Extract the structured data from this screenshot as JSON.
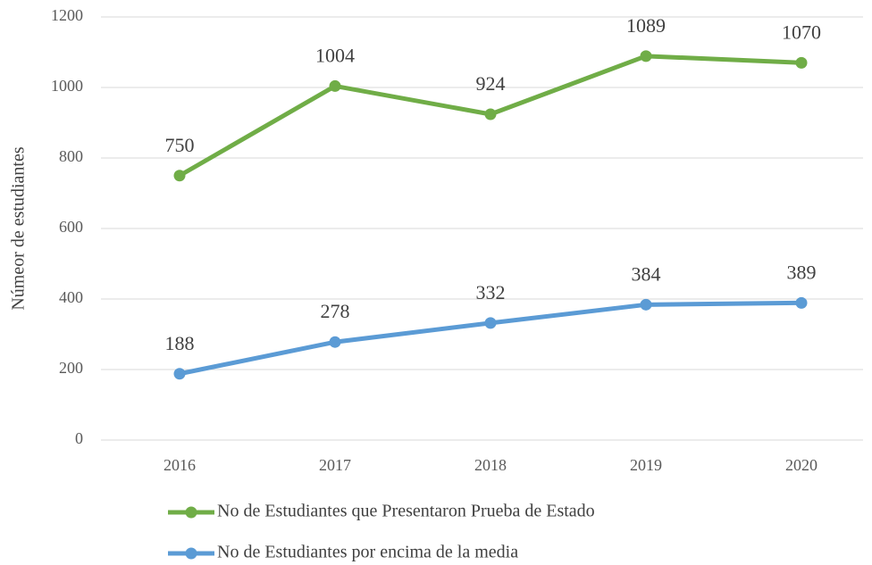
{
  "chart_data": {
    "type": "line",
    "y_label": "Númeor de estudiantes",
    "categories": [
      "2016",
      "2017",
      "2018",
      "2019",
      "2020"
    ],
    "series": [
      {
        "name": "No de Estudiantes que Presentaron Prueba de Estado",
        "color": "#70ad47",
        "values": [
          750,
          1004,
          924,
          1089,
          1070
        ]
      },
      {
        "name": "No de Estudiantes por encima de la media",
        "color": "#5b9bd5",
        "values": [
          188,
          278,
          332,
          384,
          389
        ]
      }
    ],
    "ylim": [
      0,
      1200
    ],
    "yticks": [
      0,
      200,
      400,
      600,
      800,
      1000,
      1200
    ],
    "grid": true,
    "legend": "bottom"
  }
}
